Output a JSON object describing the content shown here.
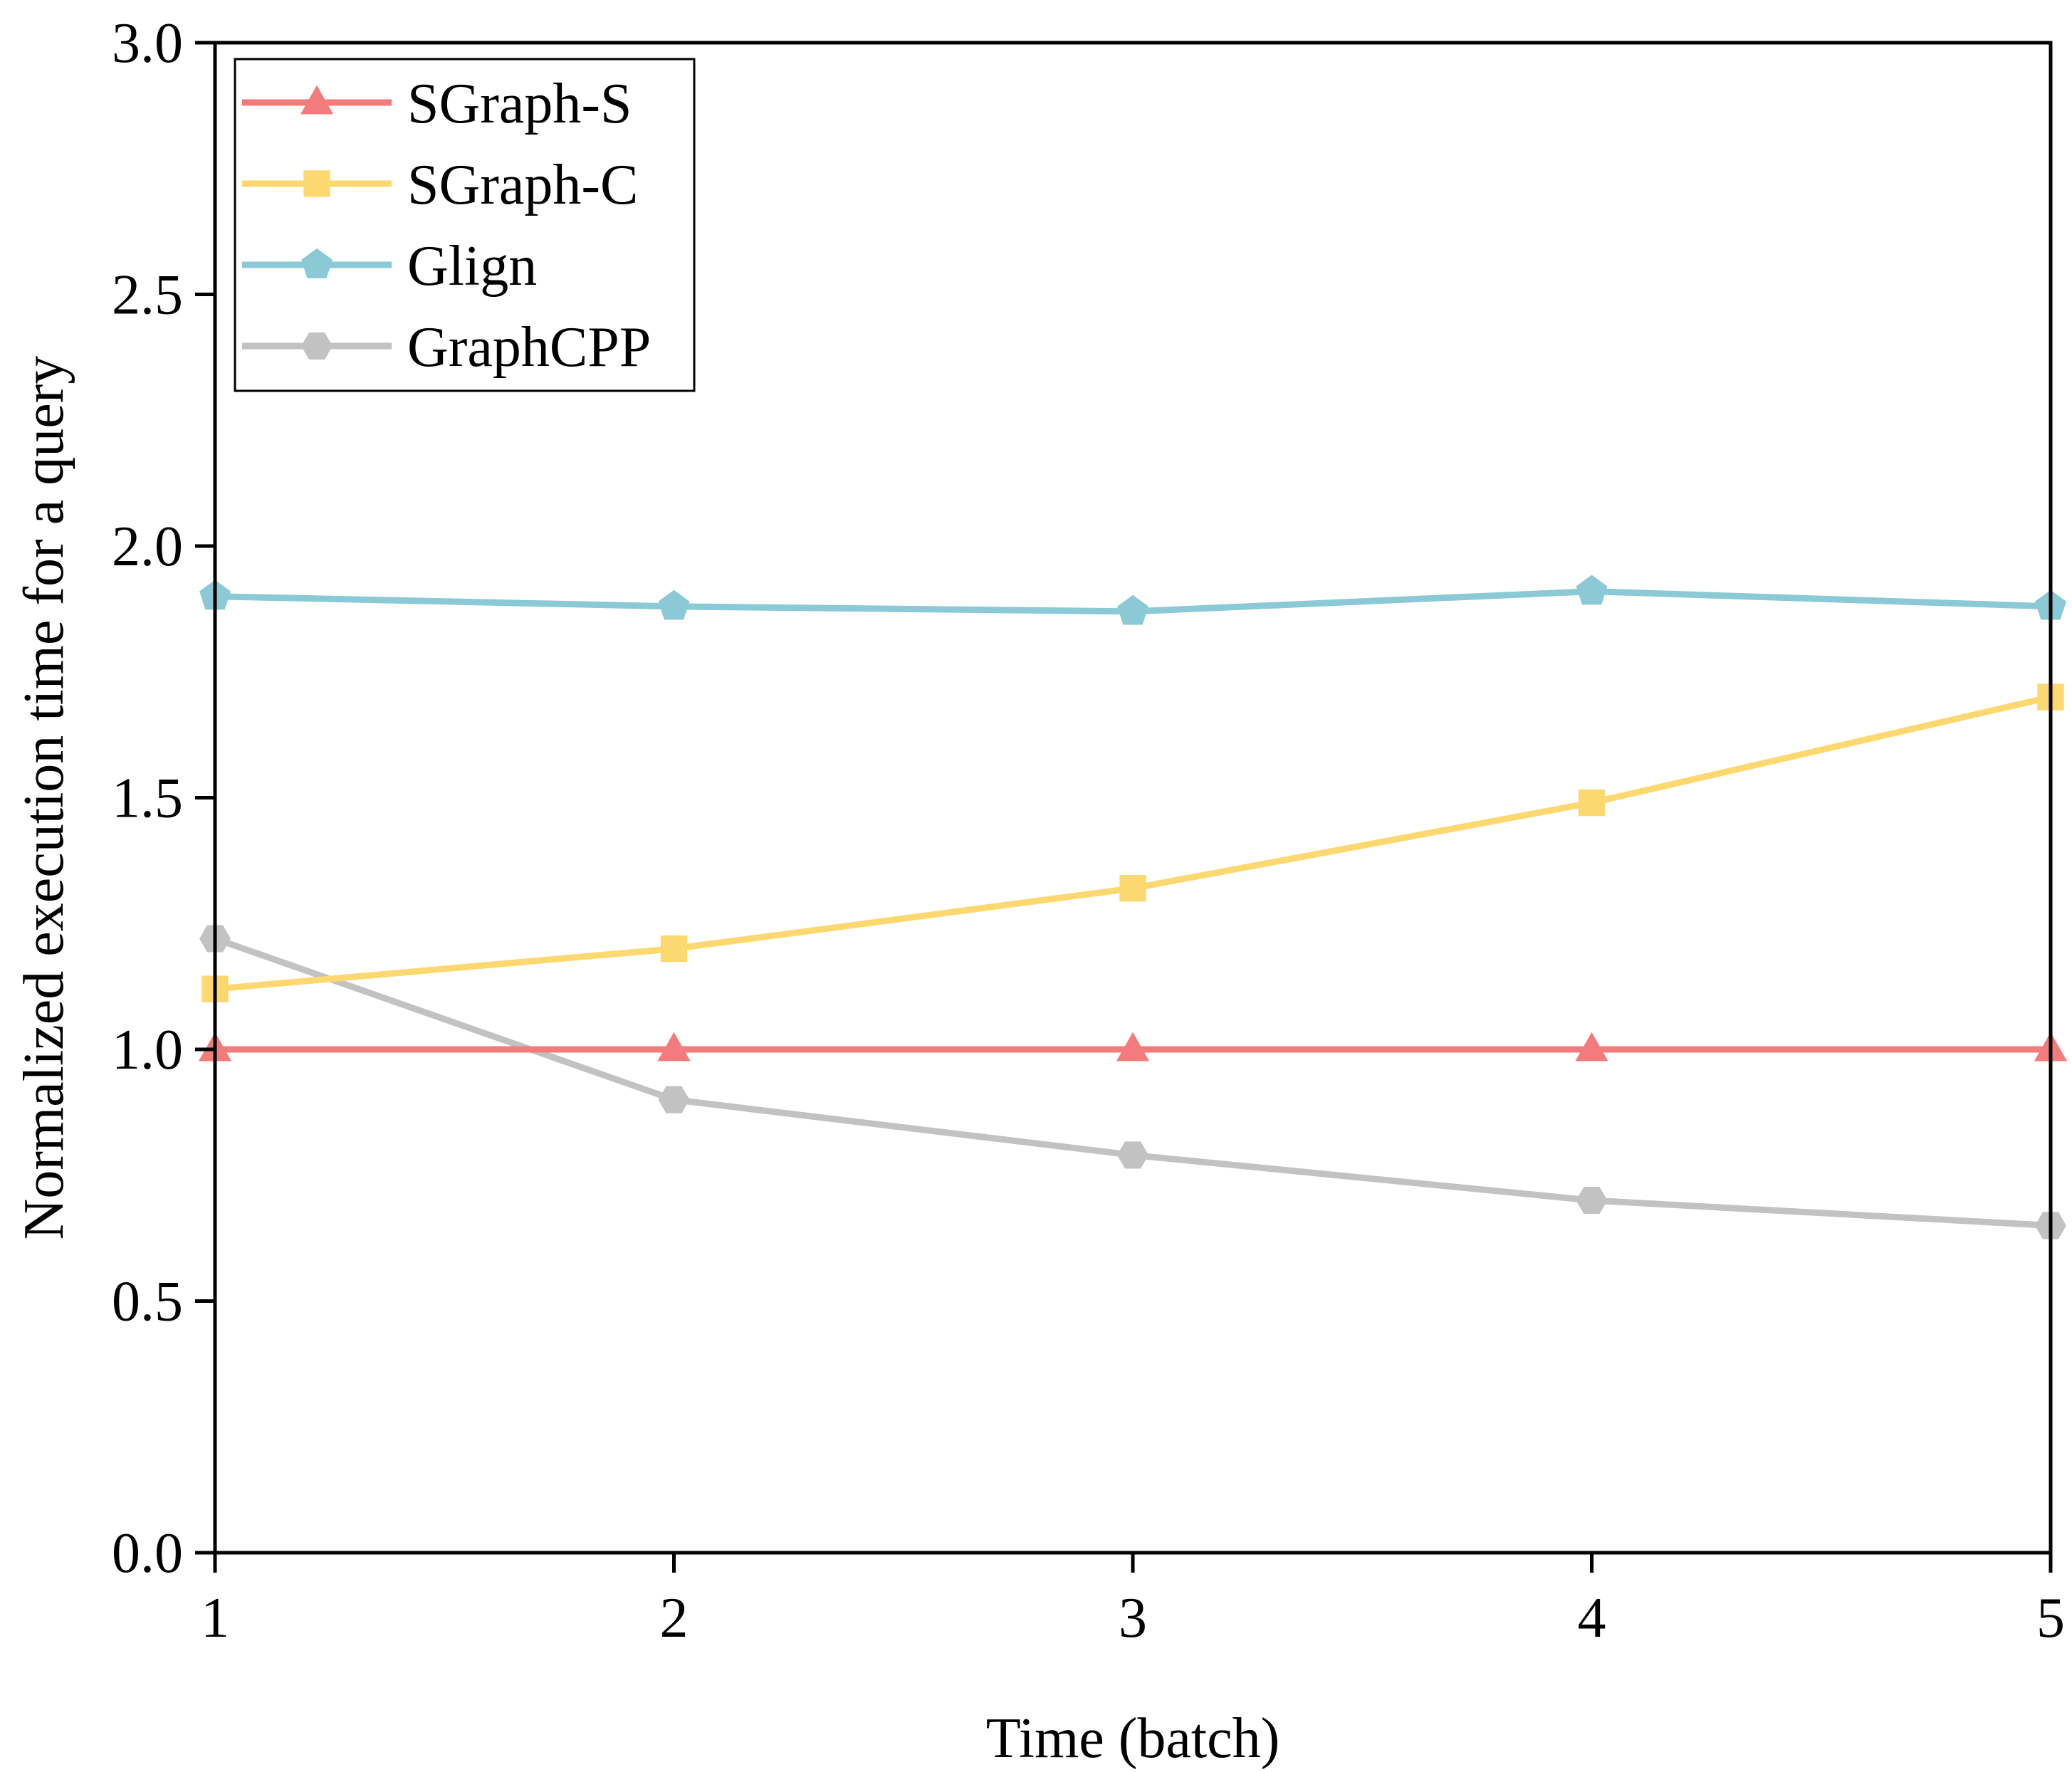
{
  "chart_data": {
    "type": "line",
    "title": "",
    "xlabel": "Time (batch)",
    "ylabel": "Normalized execution time for a query",
    "x": [
      1,
      2,
      3,
      4,
      5
    ],
    "xlim": [
      1,
      5
    ],
    "ylim": [
      0,
      3.0
    ],
    "x_ticks": [
      "1",
      "2",
      "3",
      "4",
      "5"
    ],
    "y_ticks": [
      "0.0",
      "0.5",
      "1.0",
      "1.5",
      "2.0",
      "2.5",
      "3.0"
    ],
    "grid": false,
    "legend_position": "top-left",
    "series": [
      {
        "name": "SGraph-S",
        "color": "#F37B7B",
        "marker": "triangle",
        "values": [
          1.0,
          1.0,
          1.0,
          1.0,
          1.0
        ]
      },
      {
        "name": "SGraph-C",
        "color": "#FCD970",
        "marker": "square",
        "values": [
          1.12,
          1.2,
          1.32,
          1.49,
          1.7
        ]
      },
      {
        "name": "Glign",
        "color": "#8AC9D5",
        "marker": "pentagon",
        "values": [
          1.9,
          1.88,
          1.87,
          1.91,
          1.88
        ]
      },
      {
        "name": "GraphCPP",
        "color": "#C2C2C2",
        "marker": "hexagon",
        "values": [
          1.22,
          0.9,
          0.79,
          0.7,
          0.65
        ]
      }
    ]
  }
}
